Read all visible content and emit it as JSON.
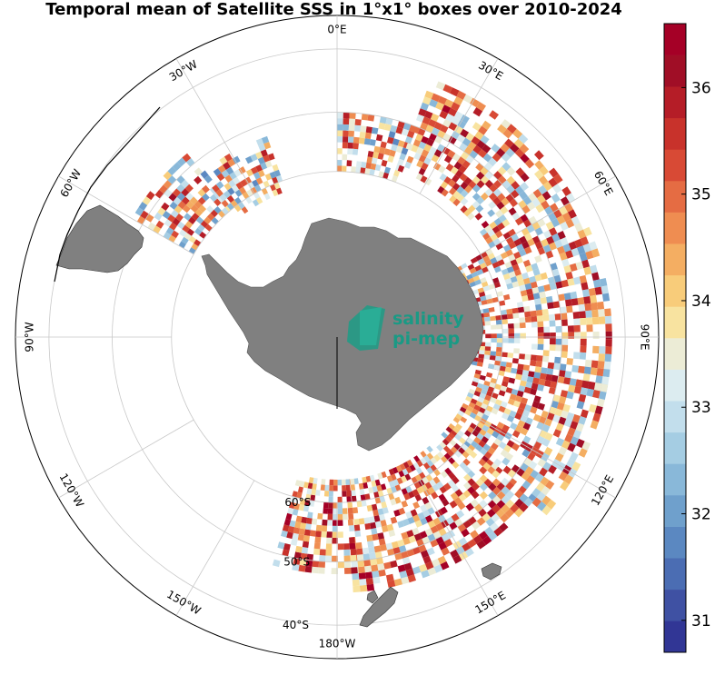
{
  "title": "Temporal mean of Satellite SSS in 1°x1° boxes over 2010-2024",
  "logo": {
    "line1": "salinity",
    "line2": "pi-mep"
  },
  "longitude_labels": [
    {
      "text": "0°E",
      "lon": 0
    },
    {
      "text": "30°E",
      "lon": 30
    },
    {
      "text": "60°E",
      "lon": 60
    },
    {
      "text": "90°E",
      "lon": 90
    },
    {
      "text": "120°E",
      "lon": 120
    },
    {
      "text": "150°E",
      "lon": 150
    },
    {
      "text": "180°W",
      "lon": 180
    },
    {
      "text": "150°W",
      "lon": -150
    },
    {
      "text": "120°W",
      "lon": -120
    },
    {
      "text": "90°W",
      "lon": -90
    },
    {
      "text": "60°W",
      "lon": -60
    },
    {
      "text": "30°W",
      "lon": -30
    }
  ],
  "latitude_labels": [
    {
      "text": "60°S",
      "lat": -60
    },
    {
      "text": "50°S",
      "lat": -50
    },
    {
      "text": "40°S",
      "lat": -40
    }
  ],
  "colorbar": {
    "min": 30.7,
    "max": 36.6,
    "ticks": [
      31,
      32,
      33,
      34,
      35,
      36
    ],
    "colors": [
      "#313695",
      "#3f51a3",
      "#4b6db3",
      "#5b88c1",
      "#6fa0cc",
      "#89b8d9",
      "#a5cde3",
      "#c2deec",
      "#dcecf0",
      "#ececd6",
      "#f8e3a0",
      "#f8cc7a",
      "#f4ae62",
      "#ef8d51",
      "#e56c43",
      "#d84a35",
      "#c8322b",
      "#b51d27",
      "#a00e26",
      "#a50026"
    ]
  },
  "map": {
    "projection": "south polar stereographic",
    "lat_limit": -35,
    "graticule_lats": [
      -40,
      -50,
      -60
    ],
    "graticule_lon_step": 30,
    "land_color": "#808080"
  },
  "data_sectors": [
    {
      "lon_start": 0,
      "lon_end": 20,
      "lat_start": -50,
      "lat_end": -60,
      "mean": 33.9
    },
    {
      "lon_start": 20,
      "lon_end": 60,
      "lat_start": -42,
      "lat_end": -58,
      "mean": 34.3
    },
    {
      "lon_start": 60,
      "lon_end": 100,
      "lat_start": -42,
      "lat_end": -65,
      "mean": 34.1
    },
    {
      "lon_start": 100,
      "lon_end": 130,
      "lat_start": -42,
      "lat_end": -64,
      "mean": 34.2
    },
    {
      "lon_start": 130,
      "lon_end": 175,
      "lat_start": -45,
      "lat_end": -64,
      "mean": 34.5
    },
    {
      "lon_start": 175,
      "lon_end": 195,
      "lat_start": -48,
      "lat_end": -64,
      "mean": 34.6
    },
    {
      "lon_start": -60,
      "lon_end": -40,
      "lat_start": -48,
      "lat_end": -60,
      "mean": 34.0
    },
    {
      "lon_start": -40,
      "lon_end": -20,
      "lat_start": -52,
      "lat_end": -62,
      "mean": 33.8
    }
  ]
}
